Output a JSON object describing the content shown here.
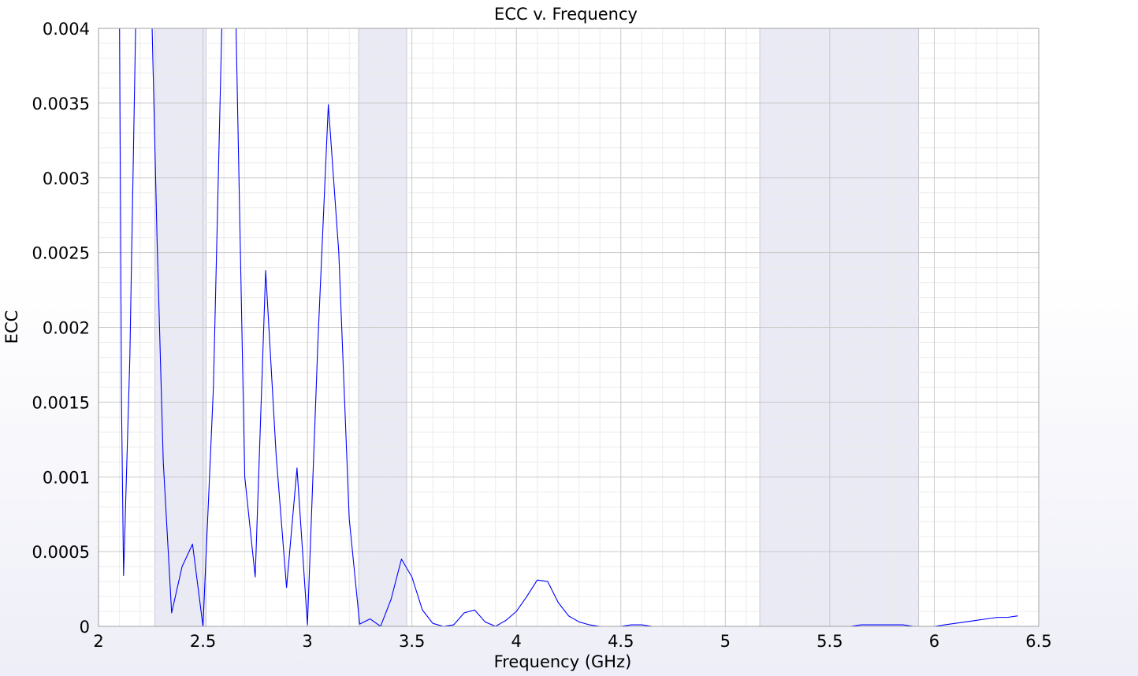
{
  "chart_data": {
    "type": "line",
    "title": "ECC v. Frequency",
    "xlabel": "Frequency (GHz)",
    "ylabel": "ECC",
    "xlim": [
      2,
      6.5
    ],
    "ylim": [
      0,
      0.004
    ],
    "grid": true,
    "minor_grid": true,
    "x_ticks": [
      2,
      2.5,
      3,
      3.5,
      4,
      4.5,
      5,
      5.5,
      6,
      6.5
    ],
    "x_tick_labels": [
      "2",
      "2.5",
      "3",
      "3.5",
      "4",
      "4.5",
      "5",
      "5.5",
      "6",
      "6.5"
    ],
    "y_ticks": [
      0,
      0.0005,
      0.001,
      0.0015,
      0.002,
      0.0025,
      0.003,
      0.0035,
      0.004
    ],
    "y_tick_labels": [
      "0",
      "0.0005",
      "0.001",
      "0.0015",
      "0.002",
      "0.0025",
      "0.003",
      "0.0035",
      "0.004"
    ],
    "shaded_bands": [
      [
        2.27,
        2.515
      ],
      [
        3.245,
        3.475
      ],
      [
        5.165,
        5.925
      ]
    ],
    "band_color": "#e9eaf4",
    "series_color": "#0000ff",
    "series": [
      {
        "x": [
          2.1,
          2.11,
          2.12,
          2.15,
          2.18,
          2.22,
          2.25,
          2.28,
          2.31,
          2.35,
          2.4,
          2.45,
          2.5,
          2.55,
          2.6,
          2.65,
          2.7,
          2.75,
          2.8,
          2.85,
          2.9,
          2.95,
          3.0,
          3.05,
          3.1,
          3.15,
          3.2,
          3.25,
          3.3,
          3.35,
          3.4,
          3.45,
          3.5,
          3.55,
          3.6,
          3.65,
          3.7,
          3.75,
          3.8,
          3.85,
          3.9,
          3.95,
          4.0,
          4.05,
          4.1,
          4.15,
          4.2,
          4.25,
          4.3,
          4.35,
          4.4,
          4.45,
          4.5,
          4.55,
          4.6,
          4.65,
          4.7,
          4.75,
          4.8,
          4.85,
          4.9,
          4.95,
          5.0,
          5.05,
          5.1,
          5.15,
          5.2,
          5.25,
          5.3,
          5.35,
          5.4,
          5.45,
          5.5,
          5.55,
          5.6,
          5.65,
          5.7,
          5.75,
          5.8,
          5.85,
          5.9,
          5.95,
          6.0,
          6.05,
          6.1,
          6.15,
          6.2,
          6.25,
          6.3,
          6.35,
          6.4
        ],
        "values": [
          0.0042,
          0.0015,
          0.00034,
          0.0018,
          0.0042,
          0.0045,
          0.0044,
          0.0026,
          0.0011,
          9e-05,
          0.0004,
          0.00055,
          0.0,
          0.0016,
          0.0046,
          0.0046,
          0.001,
          0.00033,
          0.00238,
          0.00115,
          0.00026,
          0.00106,
          1e-05,
          0.0019,
          0.00349,
          0.0025,
          0.00072,
          1.5e-05,
          5e-05,
          0.0,
          0.00018,
          0.00045,
          0.00033,
          0.00011,
          2e-05,
          0.0,
          1e-05,
          9e-05,
          0.00011,
          3e-05,
          0.0,
          4e-05,
          0.0001,
          0.0002,
          0.00031,
          0.0003,
          0.00016,
          7e-05,
          3e-05,
          1e-05,
          0.0,
          0.0,
          0.0,
          1e-05,
          1e-05,
          0.0,
          0.0,
          0.0,
          0.0,
          0.0,
          0.0,
          0.0,
          0.0,
          0.0,
          0.0,
          0.0,
          0.0,
          0.0,
          0.0,
          0.0,
          0.0,
          0.0,
          0.0,
          0.0,
          0.0,
          1e-05,
          1e-05,
          1e-05,
          1e-05,
          1e-05,
          0.0,
          0.0,
          0.0,
          1e-05,
          2e-05,
          3e-05,
          4e-05,
          5e-05,
          6e-05,
          6e-05,
          7e-05
        ]
      }
    ]
  }
}
